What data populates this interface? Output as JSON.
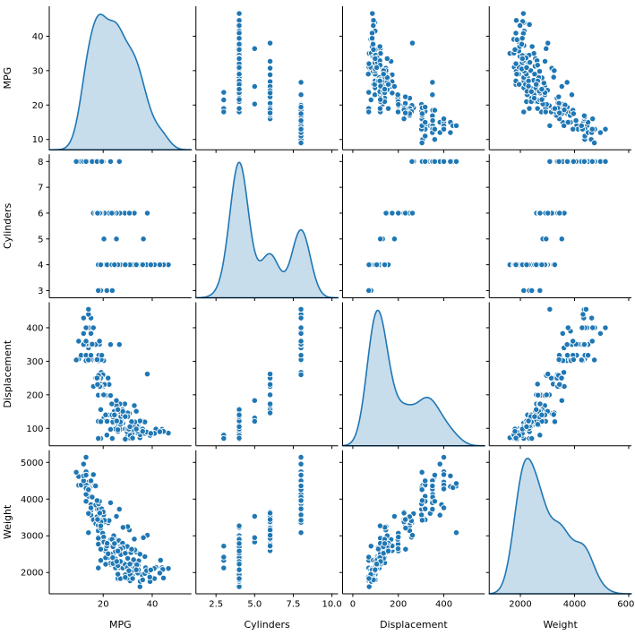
{
  "chart_data": {
    "type": "scatter",
    "subtype": "pairplot_scatter_matrix",
    "title": "",
    "diagonal": "kde",
    "legend": "none",
    "grid": false,
    "background": "#ffffff",
    "axis_color": "#000000",
    "text_color": "#000000",
    "point_color": "#1f77b4",
    "point_edge_color": "#ffffff",
    "kde_line_color": "#1f77b4",
    "kde_fill_color": "rgba(31,119,180,0.25)",
    "columns": [
      "MPG",
      "Cylinders",
      "Displacement",
      "Weight"
    ],
    "variables": [
      {
        "label": "MPG",
        "xlim": [
          -2,
          56
        ],
        "ylim": [
          7,
          48.7
        ],
        "x_ticks": [
          {
            "v": 20,
            "t": "20"
          },
          {
            "v": 40,
            "t": "40"
          }
        ],
        "y_ticks": [
          {
            "v": 10,
            "t": "10"
          },
          {
            "v": 20,
            "t": "20"
          },
          {
            "v": 30,
            "t": "30"
          },
          {
            "v": 40,
            "t": "40"
          }
        ]
      },
      {
        "label": "Cylinders",
        "xlim": [
          1.2,
          10.4
        ],
        "ylim": [
          2.72,
          8.28
        ],
        "x_ticks": [
          {
            "v": 2.5,
            "t": "2.5"
          },
          {
            "v": 5.0,
            "t": "5.0"
          },
          {
            "v": 7.5,
            "t": "7.5"
          },
          {
            "v": 10.0,
            "t": "10.0"
          }
        ],
        "y_ticks": [
          {
            "v": 3,
            "t": "3"
          },
          {
            "v": 4,
            "t": "4"
          },
          {
            "v": 5,
            "t": "5"
          },
          {
            "v": 6,
            "t": "6"
          },
          {
            "v": 7,
            "t": "7"
          },
          {
            "v": 8,
            "t": "8"
          }
        ]
      },
      {
        "label": "Displacement",
        "xlim": [
          -45,
          580
        ],
        "ylim": [
          48,
          476
        ],
        "x_ticks": [
          {
            "v": 0,
            "t": "0"
          },
          {
            "v": 200,
            "t": "200"
          },
          {
            "v": 400,
            "t": "400"
          }
        ],
        "y_ticks": [
          {
            "v": 100,
            "t": "100"
          },
          {
            "v": 200,
            "t": "200"
          },
          {
            "v": 300,
            "t": "300"
          },
          {
            "v": 400,
            "t": "400"
          }
        ]
      },
      {
        "label": "Weight",
        "xlim": [
          850,
          6100
        ],
        "ylim": [
          1420,
          5330
        ],
        "x_ticks": [
          {
            "v": 2000,
            "t": "2000"
          },
          {
            "v": 4000,
            "t": "4000"
          },
          {
            "v": 6000,
            "t": "6000"
          }
        ],
        "y_ticks": [
          {
            "v": 2000,
            "t": "2000"
          },
          {
            "v": 3000,
            "t": "3000"
          },
          {
            "v": 4000,
            "t": "4000"
          },
          {
            "v": 5000,
            "t": "5000"
          }
        ]
      }
    ],
    "points": [
      [
        18,
        8,
        307,
        3504
      ],
      [
        15,
        8,
        350,
        3693
      ],
      [
        18,
        8,
        318,
        3436
      ],
      [
        16,
        8,
        304,
        3433
      ],
      [
        17,
        8,
        302,
        3449
      ],
      [
        15,
        8,
        429,
        4341
      ],
      [
        14,
        8,
        454,
        4354
      ],
      [
        14,
        8,
        440,
        4312
      ],
      [
        14,
        8,
        455,
        4425
      ],
      [
        15,
        8,
        390,
        3850
      ],
      [
        15,
        8,
        383,
        3563
      ],
      [
        14,
        8,
        340,
        3609
      ],
      [
        15,
        8,
        400,
        3761
      ],
      [
        14,
        8,
        455,
        3086
      ],
      [
        10,
        8,
        360,
        4615
      ],
      [
        10,
        8,
        307,
        4376
      ],
      [
        11,
        8,
        318,
        4382
      ],
      [
        9,
        8,
        304,
        4732
      ],
      [
        14,
        8,
        350,
        4209
      ],
      [
        14,
        8,
        400,
        4464
      ],
      [
        14,
        8,
        351,
        4154
      ],
      [
        14,
        8,
        318,
        4096
      ],
      [
        12,
        8,
        383,
        4955
      ],
      [
        13,
        8,
        400,
        4746
      ],
      [
        13,
        8,
        400,
        5140
      ],
      [
        13,
        8,
        350,
        4274
      ],
      [
        13,
        8,
        400,
        4385
      ],
      [
        14,
        8,
        318,
        4077
      ],
      [
        13,
        8,
        351,
        4129
      ],
      [
        12,
        8,
        350,
        4499
      ],
      [
        13,
        8,
        318,
        3940
      ],
      [
        12,
        8,
        429,
        4633
      ],
      [
        13,
        8,
        400,
        4278
      ],
      [
        13,
        8,
        302,
        4295
      ],
      [
        14,
        8,
        304,
        4257
      ],
      [
        15,
        8,
        318,
        4498
      ],
      [
        16,
        8,
        400,
        4668
      ],
      [
        16,
        8,
        351,
        4363
      ],
      [
        13,
        8,
        360,
        4654
      ],
      [
        17.6,
        8,
        302,
        3725
      ],
      [
        19.2,
        8,
        267,
        3605
      ],
      [
        18.2,
        8,
        318,
        3735
      ],
      [
        20.2,
        8,
        302,
        3570
      ],
      [
        17,
        8,
        305,
        3840
      ],
      [
        16.5,
        8,
        350,
        4380
      ],
      [
        18.5,
        8,
        351,
        3955
      ],
      [
        23,
        8,
        350,
        3900
      ],
      [
        26.6,
        8,
        350,
        3725
      ],
      [
        18.1,
        8,
        302,
        3870
      ],
      [
        19.9,
        8,
        260,
        3365
      ],
      [
        19.2,
        8,
        305,
        3425
      ],
      [
        16.9,
        8,
        350,
        4360
      ],
      [
        15.5,
        8,
        351,
        4054
      ],
      [
        18.5,
        8,
        360,
        3940
      ],
      [
        17.5,
        8,
        305,
        3962
      ],
      [
        19.4,
        8,
        318,
        3735
      ],
      [
        22,
        6,
        198,
        2833
      ],
      [
        18,
        6,
        199,
        2774
      ],
      [
        21,
        6,
        200,
        2587
      ],
      [
        21,
        6,
        199,
        2648
      ],
      [
        19,
        6,
        232,
        2634
      ],
      [
        16,
        6,
        225,
        3439
      ],
      [
        17,
        6,
        250,
        3329
      ],
      [
        19,
        6,
        250,
        3302
      ],
      [
        18,
        6,
        232,
        3288
      ],
      [
        18,
        6,
        258,
        2962
      ],
      [
        19,
        6,
        250,
        3282
      ],
      [
        18,
        6,
        250,
        3139
      ],
      [
        23,
        6,
        198,
        2904
      ],
      [
        22,
        6,
        250,
        3353
      ],
      [
        20,
        6,
        225,
        3651
      ],
      [
        19,
        6,
        232,
        3211
      ],
      [
        18.1,
        6,
        258,
        3410
      ],
      [
        19.8,
        6,
        200,
        3070
      ],
      [
        19,
        6,
        156,
        2930
      ],
      [
        20.6,
        6,
        231,
        3380
      ],
      [
        22.4,
        6,
        231,
        3415
      ],
      [
        20.2,
        6,
        200,
        2965
      ],
      [
        17.5,
        6,
        250,
        3520
      ],
      [
        20.5,
        6,
        231,
        3425
      ],
      [
        28.8,
        6,
        173,
        2595
      ],
      [
        26.8,
        6,
        173,
        2700
      ],
      [
        32.7,
        6,
        168,
        2910
      ],
      [
        30.7,
        6,
        145,
        3160
      ],
      [
        25.4,
        6,
        168,
        2900
      ],
      [
        24.2,
        6,
        146,
        2930
      ],
      [
        38,
        6,
        262,
        3015
      ],
      [
        19.1,
        6,
        225,
        3381
      ],
      [
        23.5,
        6,
        173,
        2725
      ],
      [
        18.6,
        6,
        225,
        3620
      ],
      [
        17.7,
        6,
        231,
        3445
      ],
      [
        20.3,
        5,
        131,
        2830
      ],
      [
        25.4,
        5,
        183,
        3530
      ],
      [
        36.4,
        5,
        121,
        2950
      ],
      [
        19,
        3,
        70,
        2330
      ],
      [
        18,
        3,
        70,
        2124
      ],
      [
        21.5,
        3,
        80,
        2720
      ],
      [
        23.7,
        3,
        70,
        2420
      ],
      [
        24,
        4,
        113,
        2372
      ],
      [
        27,
        4,
        97,
        2130
      ],
      [
        26,
        4,
        97,
        1835
      ],
      [
        25,
        4,
        110,
        2672
      ],
      [
        24,
        4,
        107,
        2430
      ],
      [
        25,
        4,
        104,
        2375
      ],
      [
        26,
        4,
        121,
        2234
      ],
      [
        28,
        4,
        140,
        2264
      ],
      [
        25,
        4,
        113,
        2228
      ],
      [
        22,
        4,
        140,
        2408
      ],
      [
        23,
        4,
        122,
        2220
      ],
      [
        28,
        4,
        116,
        2123
      ],
      [
        30,
        4,
        79,
        2074
      ],
      [
        30,
        4,
        88,
        2065
      ],
      [
        31,
        4,
        71,
        1773
      ],
      [
        35,
        4,
        72,
        1613
      ],
      [
        27,
        4,
        97,
        1834
      ],
      [
        26,
        4,
        91,
        1955
      ],
      [
        24,
        4,
        113,
        2278
      ],
      [
        25,
        4,
        98,
        2126
      ],
      [
        23,
        4,
        97,
        2254
      ],
      [
        21,
        4,
        122,
        2226
      ],
      [
        26,
        4,
        96,
        2189
      ],
      [
        29,
        4,
        97,
        1937
      ],
      [
        24,
        4,
        120,
        2489
      ],
      [
        44,
        4,
        97,
        2130
      ],
      [
        29,
        4,
        98,
        2219
      ],
      [
        23,
        4,
        120,
        2506
      ],
      [
        21,
        4,
        140,
        2401
      ],
      [
        25,
        4,
        121,
        2671
      ],
      [
        31.9,
        4,
        89,
        1925
      ],
      [
        34.1,
        4,
        86,
        1975
      ],
      [
        35.7,
        4,
        98,
        1945
      ],
      [
        27.4,
        4,
        121,
        2670
      ],
      [
        34.2,
        4,
        105,
        2200
      ],
      [
        34.5,
        4,
        105,
        2150
      ],
      [
        31.8,
        4,
        85,
        2020
      ],
      [
        37.3,
        4,
        91,
        2130
      ],
      [
        28.4,
        4,
        151,
        2670
      ],
      [
        33.5,
        4,
        151,
        2556
      ],
      [
        41.5,
        4,
        98,
        2144
      ],
      [
        38.1,
        4,
        89,
        1968
      ],
      [
        32.1,
        4,
        98,
        2120
      ],
      [
        37.2,
        4,
        86,
        2019
      ],
      [
        26.4,
        4,
        140,
        2870
      ],
      [
        24.3,
        4,
        151,
        3003
      ],
      [
        34.3,
        4,
        97,
        2188
      ],
      [
        29.8,
        4,
        134,
        2711
      ],
      [
        31.3,
        4,
        120,
        2542
      ],
      [
        37,
        4,
        119,
        2434
      ],
      [
        32.2,
        4,
        108,
        2265
      ],
      [
        46.6,
        4,
        86,
        2110
      ],
      [
        27.9,
        4,
        156,
        2800
      ],
      [
        40.8,
        4,
        85,
        2110
      ],
      [
        44.3,
        4,
        90,
        2085
      ],
      [
        43.4,
        4,
        90,
        2335
      ],
      [
        30,
        4,
        146,
        3250
      ],
      [
        44.6,
        4,
        91,
        1850
      ],
      [
        40.9,
        4,
        85,
        1835
      ],
      [
        33.8,
        4,
        97,
        2145
      ],
      [
        29.8,
        4,
        89,
        1845
      ],
      [
        35,
        4,
        122,
        2500
      ],
      [
        32.4,
        4,
        107,
        2290
      ],
      [
        27.2,
        4,
        135,
        2490
      ],
      [
        25.8,
        4,
        156,
        2620
      ],
      [
        30,
        4,
        135,
        2385
      ],
      [
        39.1,
        4,
        79,
        1755
      ],
      [
        39,
        4,
        86,
        1875
      ],
      [
        35.1,
        4,
        81,
        1760
      ],
      [
        32.3,
        4,
        97,
        2065
      ],
      [
        37,
        4,
        85,
        1975
      ],
      [
        37.7,
        4,
        89,
        2050
      ],
      [
        34.1,
        4,
        91,
        1985
      ],
      [
        34.4,
        4,
        98,
        2075
      ],
      [
        29.9,
        4,
        98,
        2135
      ],
      [
        33,
        4,
        105,
        2125
      ],
      [
        34.5,
        4,
        100,
        2320
      ],
      [
        33.7,
        4,
        107,
        2210
      ],
      [
        32.4,
        4,
        108,
        2350
      ],
      [
        32.9,
        4,
        119,
        2615
      ],
      [
        31.6,
        4,
        120,
        2635
      ],
      [
        28.1,
        4,
        141,
        3230
      ],
      [
        26.6,
        4,
        151,
        2635
      ],
      [
        43.1,
        4,
        90,
        1985
      ],
      [
        36.1,
        4,
        98,
        1800
      ],
      [
        39.4,
        4,
        85,
        2070
      ],
      [
        36.1,
        4,
        91,
        1800
      ],
      [
        29,
        4,
        68,
        1867
      ],
      [
        31,
        4,
        79,
        1950
      ],
      [
        32,
        4,
        71,
        1836
      ],
      [
        24,
        4,
        116,
        2246
      ],
      [
        25,
        4,
        140,
        2572
      ],
      [
        24.5,
        4,
        151,
        2740
      ],
      [
        22,
        4,
        121,
        2511
      ],
      [
        18,
        4,
        121,
        2933
      ],
      [
        19,
        4,
        120,
        3270
      ],
      [
        21.6,
        4,
        121,
        2795
      ],
      [
        23.9,
        4,
        119,
        2405
      ],
      [
        28,
        4,
        151,
        2678
      ],
      [
        27,
        4,
        112,
        2640
      ],
      [
        24,
        4,
        134,
        2702
      ],
      [
        27,
        4,
        119,
        2300
      ],
      [
        25.5,
        4,
        122,
        2300
      ],
      [
        30.5,
        4,
        98,
        2051
      ],
      [
        33.5,
        4,
        98,
        2075
      ],
      [
        30.9,
        4,
        105,
        2230
      ],
      [
        29,
        4,
        135,
        2525
      ],
      [
        26,
        4,
        156,
        2585
      ],
      [
        23.6,
        4,
        140,
        2905
      ],
      [
        24.6,
        4,
        140,
        2790
      ]
    ],
    "layout": {
      "figure_w": 709,
      "figure_h": 709,
      "margin_left": 55,
      "margin_top": 7,
      "margin_right": 4,
      "margin_bottom": 46,
      "panel_gap": 5,
      "tick_len": 3.5,
      "point_radius": 3.2,
      "tick_font_size": 10,
      "label_font_size": 11
    }
  }
}
